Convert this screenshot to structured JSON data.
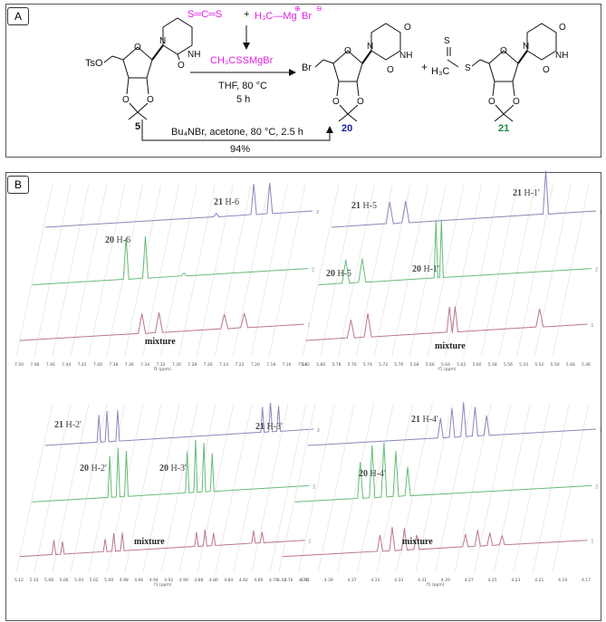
{
  "panels": {
    "a": "A",
    "b": "B"
  },
  "scheme": {
    "cs2": "S═C═S",
    "grignard": "H₃C—Mg",
    "mg_charge": "⊕",
    "bromide": "Br",
    "br_charge": "⊖",
    "plus": "+",
    "intermediate": "CH₃CSSMgBr",
    "cond_solvent": "THF, 80 °C",
    "cond_time": "5 h",
    "cond_bottom": "Bu₄NBr, acetone, 80 °C, 2.5 h",
    "yield": "94%",
    "compound_5": "5",
    "compound_20": "20",
    "compound_21": "21",
    "ts_group": "TsO",
    "br_group": "Br",
    "h3c": "H₃C",
    "atom_o": "O",
    "atom_n": "N",
    "atom_nh": "NH",
    "atom_s": "S",
    "colors": {
      "reagent": "#e020e0",
      "product20": "#1a1aa0",
      "product21": "#1a8a3a",
      "black": "#111111"
    }
  },
  "nmr": {
    "subpanels": [
      {
        "id": "h6",
        "axis_unit": "f1 (ppm)",
        "ticks": [
          "7.50",
          "7.48",
          "7.46",
          "7.44",
          "7.42",
          "7.40",
          "7.38",
          "7.36",
          "7.34",
          "7.32",
          "7.30",
          "7.28",
          "7.26",
          "7.24",
          "7.22",
          "7.20",
          "7.18",
          "7.16",
          "7.14"
        ],
        "labels": [
          {
            "bold": "21",
            "text": " H-6"
          },
          {
            "bold": "20",
            "text": " H-6"
          },
          {
            "bold": "",
            "text": "mixture"
          }
        ],
        "row_numbers": [
          "3",
          "2",
          "1"
        ]
      },
      {
        "id": "h1",
        "axis_unit": "f1 (ppm)",
        "ticks": [
          "5.82",
          "5.80",
          "5.78",
          "5.76",
          "5.74",
          "5.72",
          "5.70",
          "5.68",
          "5.66",
          "5.64",
          "5.62",
          "5.60",
          "5.58",
          "5.56",
          "5.54",
          "5.52",
          "5.50",
          "5.48",
          "5.46"
        ],
        "labels": [
          {
            "bold": "21",
            "text": " H-5"
          },
          {
            "bold": "21",
            "text": " H-1'"
          },
          {
            "bold": "20",
            "text": " H-5"
          },
          {
            "bold": "20",
            "text": " H-1'"
          },
          {
            "bold": "",
            "text": "mixture"
          }
        ],
        "row_numbers": [
          "3",
          "2",
          "1"
        ]
      },
      {
        "id": "h23",
        "axis_unit": "f1 (ppm)",
        "ticks": [
          "5.12",
          "5.10",
          "5.08",
          "5.06",
          "5.04",
          "5.02",
          "5.00",
          "4.98",
          "4.96",
          "4.94",
          "4.92",
          "4.90",
          "4.88",
          "4.86",
          "4.84",
          "4.82",
          "4.80",
          "4.78",
          "4.76",
          "4.74"
        ],
        "labels": [
          {
            "bold": "21",
            "text": " H-2'"
          },
          {
            "bold": "21",
            "text": " H-3'"
          },
          {
            "bold": "20",
            "text": " H-2'"
          },
          {
            "bold": "20",
            "text": " H-3'"
          },
          {
            "bold": "",
            "text": "mixture"
          }
        ],
        "row_numbers": [
          "3",
          "2",
          "1"
        ]
      },
      {
        "id": "h4",
        "axis_unit": "f1 (ppm)",
        "ticks": [
          "4.43",
          "4.41",
          "4.39",
          "4.37",
          "4.35",
          "4.33",
          "4.31",
          "4.29",
          "4.27",
          "4.25",
          "4.23",
          "4.21",
          "4.19",
          "4.17"
        ],
        "labels": [
          {
            "bold": "21",
            "text": " H-4'"
          },
          {
            "bold": "20",
            "text": " H-4'"
          },
          {
            "bold": "",
            "text": "mixture"
          }
        ],
        "row_numbers": [
          "3",
          "2",
          "1"
        ]
      }
    ],
    "trace_colors": {
      "top": "#8888bb",
      "middle": "#66bb77",
      "bottom": "#bb7788"
    }
  }
}
